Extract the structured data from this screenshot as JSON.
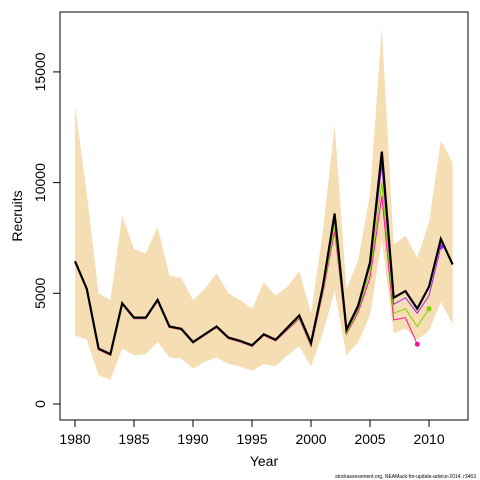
{
  "chart_data": {
    "type": "line",
    "x_label": "Year",
    "y_label": "Recruits",
    "caption": "stockassessment.org, NEAMack-for-update-advice-2014, r3463",
    "x": [
      1980,
      1981,
      1982,
      1983,
      1984,
      1985,
      1986,
      1987,
      1988,
      1989,
      1990,
      1991,
      1992,
      1993,
      1994,
      1995,
      1996,
      1997,
      1998,
      1999,
      2000,
      2001,
      2002,
      2003,
      2004,
      2005,
      2006,
      2007,
      2008,
      2009,
      2010,
      2011,
      2012
    ],
    "band": {
      "color": "#f5deb3",
      "upper": [
        13500,
        9500,
        5000,
        4700,
        8500,
        7000,
        6800,
        8000,
        5800,
        5700,
        4700,
        5200,
        5900,
        5000,
        4700,
        4300,
        5500,
        4900,
        5300,
        6000,
        4100,
        7800,
        12600,
        5200,
        6500,
        9500,
        17000,
        7200,
        7600,
        6600,
        8200,
        11900,
        10900
      ],
      "lower": [
        3100,
        2900,
        1300,
        1100,
        2500,
        2200,
        2250,
        2800,
        2100,
        2050,
        1600,
        1900,
        2100,
        1800,
        1700,
        1500,
        1800,
        1700,
        2200,
        2600,
        1700,
        3200,
        5100,
        2200,
        2800,
        4000,
        7400,
        3200,
        3400,
        2900,
        3300,
        4600,
        3600
      ]
    },
    "series": [
      {
        "color": "#ff1493",
        "values": [
          6400,
          5150,
          2450,
          2200,
          4500,
          3850,
          3850,
          4650,
          3450,
          3350,
          2750,
          3100,
          3450,
          2950,
          2800,
          2600,
          3100,
          2850,
          3350,
          3850,
          2600,
          5000,
          7800,
          3150,
          4150,
          5700,
          9400,
          3800,
          3900,
          2700,
          null,
          null,
          null
        ]
      },
      {
        "color": "#7fd400",
        "values": [
          6420,
          5170,
          2470,
          2220,
          4520,
          3870,
          3870,
          4670,
          3470,
          3370,
          2770,
          3120,
          3470,
          2970,
          2820,
          2620,
          3120,
          2870,
          3400,
          3900,
          2650,
          5100,
          8000,
          3200,
          4250,
          5950,
          10000,
          4100,
          4300,
          3500,
          4300,
          null,
          null
        ]
      },
      {
        "color": "#a020f0",
        "values": [
          6440,
          5190,
          2490,
          2240,
          4540,
          3890,
          3890,
          4690,
          3490,
          3390,
          2790,
          3140,
          3490,
          2990,
          2840,
          2640,
          3140,
          2890,
          3430,
          3970,
          2700,
          5200,
          8400,
          3300,
          4350,
          6250,
          10800,
          4500,
          4800,
          4100,
          4900,
          7100,
          null
        ]
      },
      {
        "color": "#000000",
        "values": [
          6450,
          5200,
          2500,
          2250,
          4550,
          3900,
          3900,
          4700,
          3500,
          3400,
          2800,
          3150,
          3500,
          3000,
          2850,
          2650,
          3150,
          2900,
          3450,
          4000,
          2750,
          5300,
          8600,
          3350,
          4450,
          6400,
          11400,
          4800,
          5100,
          4300,
          5300,
          7450,
          6300
        ]
      }
    ],
    "xlim": [
      1978.73,
      2013.3
    ],
    "ylim": [
      -723,
      17706
    ],
    "xticks": [
      1980,
      1985,
      1990,
      1995,
      2000,
      2005,
      2010
    ],
    "yticks": [
      0,
      5000,
      10000,
      15000
    ]
  }
}
